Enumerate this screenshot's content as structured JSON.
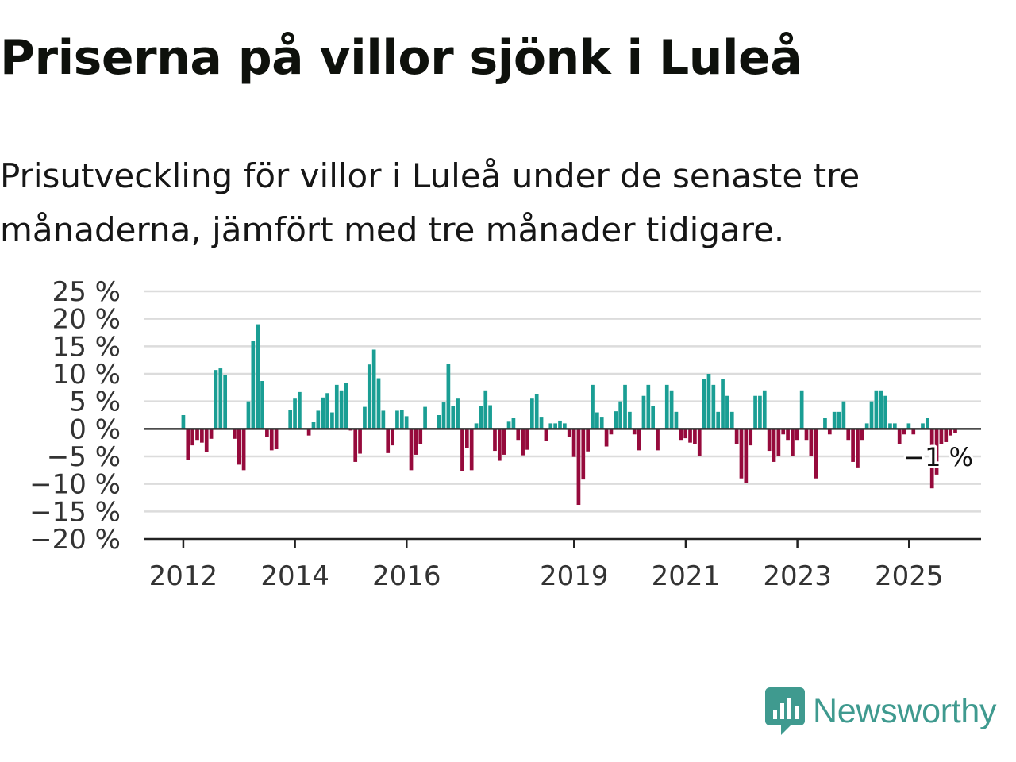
{
  "title": "Priserna på villor sjönk i Luleå",
  "subtitle": "Prisutveckling för villor i Luleå under de senaste tre månaderna, jämfört med tre månader tidigare.",
  "brand": {
    "name": "Newsworthy",
    "color": "#3f9a8f",
    "icon": "newsworthy-chart-icon"
  },
  "colors": {
    "positive": "#1a9e94",
    "negative": "#960a3c",
    "grid": "#dcdcdc",
    "axis": "#222222"
  },
  "chart_data": {
    "type": "bar",
    "title": "Priserna på villor sjönk i Luleå",
    "xlabel": "",
    "ylabel": "",
    "ylim": [
      -20,
      25
    ],
    "yticks": [
      25,
      20,
      15,
      10,
      5,
      0,
      -5,
      -10,
      -15,
      -20
    ],
    "ytick_labels": [
      "25 %",
      "20 %",
      "15 %",
      "10 %",
      "5 %",
      "0 %",
      "−5 %",
      "−10 %",
      "−15 %",
      "−20 %"
    ],
    "xticks": [
      2012,
      2014,
      2016,
      2019,
      2021,
      2023,
      2025
    ],
    "xtick_labels": [
      "2012",
      "2014",
      "2016",
      "2019",
      "2021",
      "2023",
      "2025"
    ],
    "xlim": [
      2011.29,
      2026.29
    ],
    "grid": true,
    "legend": "none",
    "annotation": {
      "text": "−1 %",
      "x": 2025.58,
      "y": -1
    },
    "series": [
      {
        "x_start": 2012.0,
        "x_step": 0.0833,
        "values": [
          2.5,
          -5.6,
          -3,
          -2,
          -2.5,
          -4.2,
          -1.8,
          10.7,
          11,
          9.8,
          0,
          -1.8,
          -6.5,
          -7.5,
          5,
          16,
          19,
          8.7,
          -1.5,
          -3.9,
          -3.7,
          0,
          0,
          3.5,
          5.5,
          6.7,
          0,
          -1.2,
          1.2,
          3.3,
          5.7,
          6.5,
          3,
          8,
          7,
          8.3,
          -0.3,
          -6,
          -4.5,
          4,
          11.7,
          14.4,
          9.2,
          3.3,
          -4.4,
          -3,
          3.3,
          3.5,
          2.3,
          -7.5,
          -4.7,
          -2.7,
          4,
          0,
          0,
          2.5,
          4.8,
          11.8,
          4.2,
          5.5,
          -7.7,
          -3.5,
          -7.5,
          1,
          4.2,
          7,
          4.3,
          -4,
          -5.8,
          -4.7,
          1.3,
          2,
          -2,
          -4.8,
          -3.8,
          5.5,
          6.3,
          2.2,
          -2.2,
          1,
          1,
          1.5,
          1,
          -1.5,
          -5.1,
          -13.8,
          -9.2,
          -4.1,
          8,
          3,
          2.2,
          -3.2,
          -1,
          3.2,
          5,
          8,
          3.1,
          -1,
          -3.9,
          6,
          8,
          4.1,
          -3.9,
          0,
          8,
          7,
          3.1,
          -2,
          -1.7,
          -2.5,
          -2.7,
          -5,
          9,
          10,
          8,
          3.1,
          9,
          6,
          3.1,
          -2.8,
          -9,
          -9.8,
          -3,
          6,
          6,
          7,
          -4,
          -6,
          -5,
          -1,
          -2,
          -5,
          -2,
          7,
          -2,
          -5,
          -9,
          0,
          2,
          -1,
          3.1,
          3.1,
          5,
          -2,
          -6,
          -7,
          -2,
          1,
          5,
          7,
          7,
          6,
          1,
          1,
          -2.8,
          -1,
          1,
          -1,
          0,
          1,
          2,
          -10.8,
          -8.3,
          -2.8,
          -2.4,
          -1.2,
          -0.7
        ]
      }
    ]
  }
}
